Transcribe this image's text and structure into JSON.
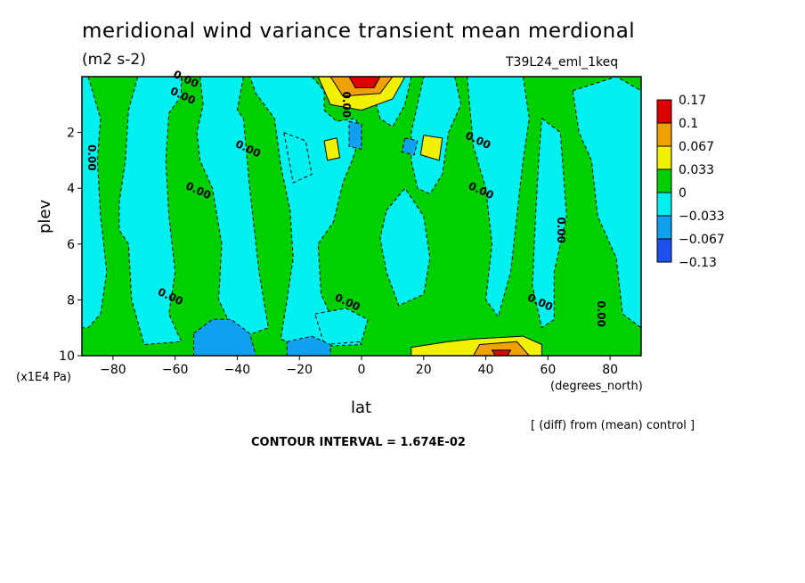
{
  "chart_data": {
    "type": "heatmap",
    "title": "meridional wind variance transient mean merdional",
    "units": "(m2 s-2)",
    "run_label": "T39L24_eml_1keq",
    "xlabel": "lat",
    "xunits": "(degrees_north)",
    "ylabel": "plev",
    "yunits": "(x1E4 Pa)",
    "xlim": [
      -90,
      90
    ],
    "ylim": [
      0,
      10
    ],
    "y_reversed": true,
    "xticks": [
      -80,
      -60,
      -40,
      -20,
      0,
      20,
      40,
      60,
      80
    ],
    "xtick_labels": [
      "−80",
      "−60",
      "−40",
      "−20",
      "0",
      "20",
      "40",
      "60",
      "80"
    ],
    "yticks": [
      2,
      4,
      6,
      8,
      10
    ],
    "ytick_labels": [
      "2",
      "4",
      "6",
      "8",
      "10"
    ],
    "contour_label": "0.00",
    "contour_label_positions": [
      [
        -57,
        0.2
      ],
      [
        -58,
        0.8
      ],
      [
        -88,
        2.9
      ],
      [
        -37,
        2.7
      ],
      [
        -53,
        4.2
      ],
      [
        -6,
        1.0
      ],
      [
        37,
        2.4
      ],
      [
        38,
        4.2
      ],
      [
        63,
        5.5
      ],
      [
        -5,
        8.2
      ],
      [
        57,
        8.2
      ],
      [
        76,
        8.5
      ],
      [
        -62,
        8.0
      ]
    ],
    "colorbar": {
      "levels": [
        -0.13,
        -0.067,
        -0.033,
        0,
        0.033,
        0.067,
        0.1,
        0.17
      ],
      "labels": [
        "0.17",
        "0.1",
        "0.067",
        "0.033",
        "0",
        "−0.033",
        "−0.067",
        "−0.13"
      ],
      "colors": [
        "#e00000",
        "#f0a000",
        "#f0f000",
        "#00d000",
        "#00f0f0",
        "#10a0f0",
        "#1e50f0"
      ]
    },
    "fill_regions": [
      {
        "level": "negative",
        "poly": [
          [
            -90,
            0
          ],
          [
            -88,
            0
          ],
          [
            -84,
            1.5
          ],
          [
            -85,
            3
          ],
          [
            -84,
            5
          ],
          [
            -82,
            7
          ],
          [
            -84,
            8.5
          ],
          [
            -88,
            9
          ],
          [
            -90,
            9
          ]
        ]
      },
      {
        "level": "negative",
        "poly": [
          [
            -72,
            0
          ],
          [
            -58,
            0
          ],
          [
            -58,
            0.7
          ],
          [
            -62,
            1.3
          ],
          [
            -63,
            3
          ],
          [
            -62,
            5
          ],
          [
            -60,
            7
          ],
          [
            -62,
            8.5
          ],
          [
            -58,
            9.5
          ],
          [
            -70,
            9.6
          ],
          [
            -74,
            8
          ],
          [
            -75,
            6
          ],
          [
            -78,
            5.5
          ],
          [
            -78,
            4.5
          ],
          [
            -76,
            3
          ],
          [
            -75,
            1.2
          ]
        ]
      },
      {
        "level": "negative",
        "poly": [
          [
            -52,
            0
          ],
          [
            -38,
            0
          ],
          [
            -40,
            1.2
          ],
          [
            -38,
            1.5
          ],
          [
            -36,
            4
          ],
          [
            -33,
            7
          ],
          [
            -30,
            9
          ],
          [
            -40,
            9.4
          ],
          [
            -46,
            8
          ],
          [
            -45,
            6
          ],
          [
            -48,
            4
          ],
          [
            -52,
            3
          ],
          [
            -53,
            2
          ],
          [
            -51,
            1
          ]
        ]
      },
      {
        "level": "negative",
        "poly": [
          [
            -36,
            0
          ],
          [
            -16,
            0
          ],
          [
            -12,
            0.5
          ],
          [
            -12,
            1.2
          ],
          [
            -8,
            1.6
          ],
          [
            -2,
            1.5
          ],
          [
            0,
            2
          ],
          [
            -3,
            3
          ],
          [
            -6,
            3.8
          ],
          [
            -9,
            5.2
          ],
          [
            -14,
            6
          ],
          [
            -13,
            7.8
          ],
          [
            -9,
            8.8
          ],
          [
            -3,
            9.2
          ],
          [
            0,
            9.6
          ],
          [
            -20,
            9.7
          ],
          [
            -26,
            9.4
          ],
          [
            -24,
            8
          ],
          [
            -22,
            6.5
          ],
          [
            -23,
            4.8
          ],
          [
            -26,
            3.2
          ],
          [
            -28,
            1.5
          ],
          [
            -34,
            0.6
          ]
        ]
      },
      {
        "level": "negative",
        "poly": [
          [
            8,
            0
          ],
          [
            16,
            0
          ],
          [
            14,
            1
          ],
          [
            10,
            1.8
          ],
          [
            6,
            1.5
          ],
          [
            4,
            0.7
          ]
        ]
      },
      {
        "level": "negative",
        "poly": [
          [
            20,
            0
          ],
          [
            30,
            0
          ],
          [
            32,
            1
          ],
          [
            28,
            2
          ],
          [
            26,
            3.5
          ],
          [
            22,
            4.2
          ],
          [
            18,
            4
          ],
          [
            16,
            3
          ],
          [
            16,
            2
          ]
        ]
      },
      {
        "level": "negative",
        "poly": [
          [
            34,
            0
          ],
          [
            52,
            0
          ],
          [
            54,
            1.5
          ],
          [
            52,
            3
          ],
          [
            50,
            5
          ],
          [
            48,
            7
          ],
          [
            44,
            8.6
          ],
          [
            40,
            8
          ],
          [
            42,
            6
          ],
          [
            40,
            4
          ],
          [
            36,
            2.5
          ]
        ]
      },
      {
        "level": "negative",
        "poly": [
          [
            58,
            1.5
          ],
          [
            64,
            2
          ],
          [
            66,
            5
          ],
          [
            62,
            7
          ],
          [
            62,
            8.7
          ],
          [
            58,
            9
          ],
          [
            55,
            7.5
          ],
          [
            56,
            5
          ],
          [
            57,
            3
          ]
        ]
      },
      {
        "level": "negative",
        "poly": [
          [
            68,
            0.5
          ],
          [
            82,
            0
          ],
          [
            90,
            0.5
          ],
          [
            90,
            9
          ],
          [
            84,
            8.5
          ],
          [
            82,
            6.5
          ],
          [
            80,
            6
          ],
          [
            76,
            5
          ],
          [
            74,
            3
          ],
          [
            70,
            2
          ]
        ]
      },
      {
        "level": "negative",
        "poly": [
          [
            8,
            4.8
          ],
          [
            14,
            4
          ],
          [
            20,
            5
          ],
          [
            22,
            6.5
          ],
          [
            20,
            7.8
          ],
          [
            12,
            8.2
          ],
          [
            8,
            7
          ],
          [
            6,
            5.8
          ]
        ]
      },
      {
        "level": "negative",
        "poly": [
          [
            -15,
            8.5
          ],
          [
            -5,
            8.3
          ],
          [
            2,
            8.7
          ],
          [
            0,
            9.5
          ],
          [
            -12,
            9.6
          ]
        ]
      },
      {
        "level": "negative",
        "poly": [
          [
            -25,
            2.0
          ],
          [
            -18,
            2.3
          ],
          [
            -16,
            3.5
          ],
          [
            -22,
            3.8
          ]
        ]
      },
      {
        "level": "strong_negative",
        "poly": [
          [
            -54,
            9.2
          ],
          [
            -48,
            8.7
          ],
          [
            -42,
            8.7
          ],
          [
            -36,
            9.2
          ],
          [
            -34,
            10
          ],
          [
            -54,
            10
          ]
        ]
      },
      {
        "level": "strong_negative",
        "poly": [
          [
            -24,
            9.5
          ],
          [
            -16,
            9.3
          ],
          [
            -10,
            9.6
          ],
          [
            -10,
            10
          ],
          [
            -24,
            10
          ]
        ]
      },
      {
        "level": "strong_negative",
        "poly": [
          [
            -4,
            1.6
          ],
          [
            0,
            1.7
          ],
          [
            0,
            2.6
          ],
          [
            -4,
            2.5
          ]
        ]
      },
      {
        "level": "strong_negative",
        "poly": [
          [
            14,
            2.2
          ],
          [
            18,
            2.3
          ],
          [
            17,
            2.8
          ],
          [
            13,
            2.7
          ]
        ]
      },
      {
        "level": "positive",
        "poly": [
          [
            -14,
            0
          ],
          [
            14,
            0
          ],
          [
            10,
            0.8
          ],
          [
            0,
            1.2
          ],
          [
            -10,
            1.0
          ]
        ]
      },
      {
        "level": "positive",
        "poly": [
          [
            -12,
            2.3
          ],
          [
            -8,
            2.2
          ],
          [
            -7,
            2.9
          ],
          [
            -11,
            3.0
          ]
        ]
      },
      {
        "level": "positive",
        "poly": [
          [
            20,
            2.1
          ],
          [
            26,
            2.2
          ],
          [
            25,
            3.0
          ],
          [
            19,
            2.8
          ]
        ]
      },
      {
        "level": "positive",
        "poly": [
          [
            16,
            9.7
          ],
          [
            28,
            9.5
          ],
          [
            36,
            9.4
          ],
          [
            52,
            9.3
          ],
          [
            58,
            9.6
          ],
          [
            58,
            10
          ],
          [
            16,
            10
          ]
        ]
      },
      {
        "level": "positive_high",
        "poly": [
          [
            -10,
            0
          ],
          [
            10,
            0
          ],
          [
            6,
            0.6
          ],
          [
            -6,
            0.7
          ]
        ]
      },
      {
        "level": "positive_high",
        "poly": [
          [
            38,
            9.6
          ],
          [
            50,
            9.5
          ],
          [
            54,
            10
          ],
          [
            36,
            10
          ]
        ]
      },
      {
        "level": "max",
        "poly": [
          [
            -4,
            0
          ],
          [
            6,
            0
          ],
          [
            4,
            0.4
          ],
          [
            -2,
            0.4
          ]
        ]
      },
      {
        "level": "max",
        "poly": [
          [
            42,
            9.8
          ],
          [
            48,
            9.8
          ],
          [
            47,
            10
          ],
          [
            43,
            10
          ]
        ]
      }
    ]
  },
  "footer": {
    "note": "[ (diff) from (mean) control ]",
    "interval": "CONTOUR INTERVAL = 1.674E-02"
  }
}
